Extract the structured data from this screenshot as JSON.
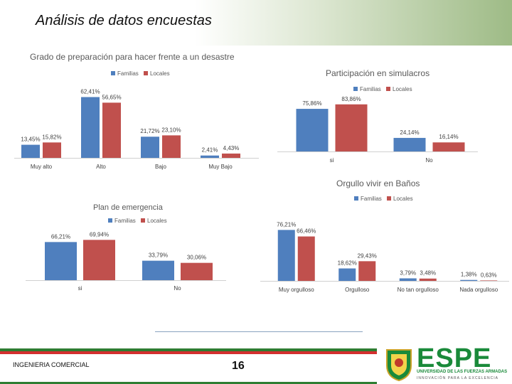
{
  "slide": {
    "title": "Análisis de datos encuestas",
    "footer_left": "INGENIERIA COMERCIAL",
    "page_number": "16",
    "logo_text": "ESPE",
    "logo_subtitle": "UNIVERSIDAD DE LAS FUERZAS ARMADAS",
    "logo_slogan": "INNOVACIÓN PARA LA EXCELENCIA",
    "brand_green": "#1a8a3a"
  },
  "colors": {
    "familias": "#4f7fbe",
    "locales": "#c0504d"
  },
  "chart_data": [
    {
      "type": "bar",
      "title": "Grado de preparación para hacer frente a un desastre",
      "categories": [
        "Muy alto",
        "Alto",
        "Bajo",
        "Muy Bajo"
      ],
      "series": [
        {
          "name": "Familias",
          "values": [
            13.45,
            62.41,
            21.72,
            2.41
          ],
          "labels": [
            "13,45%",
            "62,41%",
            "21,72%",
            "2,41%"
          ]
        },
        {
          "name": "Locales",
          "values": [
            15.82,
            56.65,
            23.1,
            4.43
          ],
          "labels": [
            "15,82%",
            "56,65%",
            "23,10%",
            "4,43%"
          ]
        }
      ],
      "legend": "top"
    },
    {
      "type": "bar",
      "title": "Participación en simulacros",
      "categories": [
        "si",
        "No"
      ],
      "series": [
        {
          "name": "Familias",
          "values": [
            75.86,
            24.14
          ],
          "labels": [
            "75,86%",
            "24,14%"
          ]
        },
        {
          "name": "Locales",
          "values": [
            83.86,
            16.14
          ],
          "labels": [
            "83,86%",
            "16,14%"
          ]
        }
      ],
      "legend": "top"
    },
    {
      "type": "bar",
      "title": "Plan  de emergencia",
      "categories": [
        "si",
        "No"
      ],
      "series": [
        {
          "name": "Familias",
          "values": [
            66.21,
            33.79
          ],
          "labels": [
            "66,21%",
            "33,79%"
          ]
        },
        {
          "name": "Locales",
          "values": [
            69.94,
            30.06
          ],
          "labels": [
            "69,94%",
            "30,06%"
          ]
        }
      ],
      "legend": "top"
    },
    {
      "type": "bar",
      "title": "Orgullo vivir en Baños",
      "categories": [
        "Muy orgulloso",
        "Orgulloso",
        "No tan orgulloso",
        "Nada orgulloso"
      ],
      "series": [
        {
          "name": "Familias",
          "values": [
            76.21,
            18.62,
            3.79,
            1.38
          ],
          "labels": [
            "76,21%",
            "18,62%",
            "3,79%",
            "1,38%"
          ]
        },
        {
          "name": "Locales",
          "values": [
            66.46,
            29.43,
            3.48,
            0.63
          ],
          "labels": [
            "66,46%",
            "29,43%",
            "3,48%",
            "0,63%"
          ]
        }
      ],
      "legend": "top"
    }
  ]
}
